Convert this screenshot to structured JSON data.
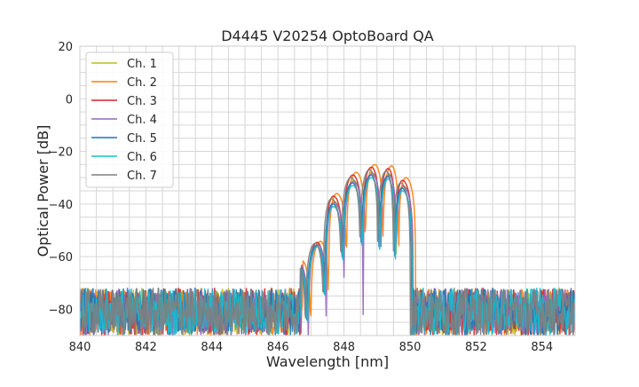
{
  "chart_data": {
    "type": "line",
    "title": "D4445 V20254 OptoBoard QA",
    "xlabel": "Wavelength [nm]",
    "ylabel": "Optical Power [dB]",
    "xlim": [
      840,
      855
    ],
    "ylim": [
      -90,
      20
    ],
    "xticks": [
      840,
      842,
      844,
      846,
      848,
      850,
      852,
      854
    ],
    "yticks": [
      20,
      0,
      -20,
      -40,
      -60,
      -80
    ],
    "grid": true,
    "legend_position": "top-left",
    "noise_floor_db": [
      -90,
      -72
    ],
    "passband_nm": [
      846.7,
      850.1
    ],
    "lobes": [
      {
        "center_nm": 846.6,
        "peak_db": -62
      },
      {
        "center_nm": 847.19,
        "peak_db": -55
      },
      {
        "center_nm": 847.68,
        "peak_db": -38
      },
      {
        "center_nm": 848.27,
        "peak_db": -30
      },
      {
        "center_nm": 848.83,
        "peak_db": -27
      },
      {
        "center_nm": 849.34,
        "peak_db": -27.5
      },
      {
        "center_nm": 849.77,
        "peak_db": -32
      }
    ],
    "series": [
      {
        "name": "Ch. 1",
        "color": "#bcbd22",
        "shift_nm": 0.02,
        "gain_db": -1
      },
      {
        "name": "Ch. 2",
        "color": "#ff7f0e",
        "shift_nm": 0.1,
        "gain_db": 2
      },
      {
        "name": "Ch. 3",
        "color": "#d62728",
        "shift_nm": 0.0,
        "gain_db": 1
      },
      {
        "name": "Ch. 4",
        "color": "#9467bd",
        "shift_nm": 0.03,
        "gain_db": -1.5
      },
      {
        "name": "Ch. 5",
        "color": "#1f77b4",
        "shift_nm": -0.02,
        "gain_db": -2
      },
      {
        "name": "Ch. 6",
        "color": "#17becf",
        "shift_nm": 0.0,
        "gain_db": -3
      },
      {
        "name": "Ch. 7",
        "color": "#7f7f7f",
        "shift_nm": -0.06,
        "gain_db": 0
      }
    ]
  }
}
